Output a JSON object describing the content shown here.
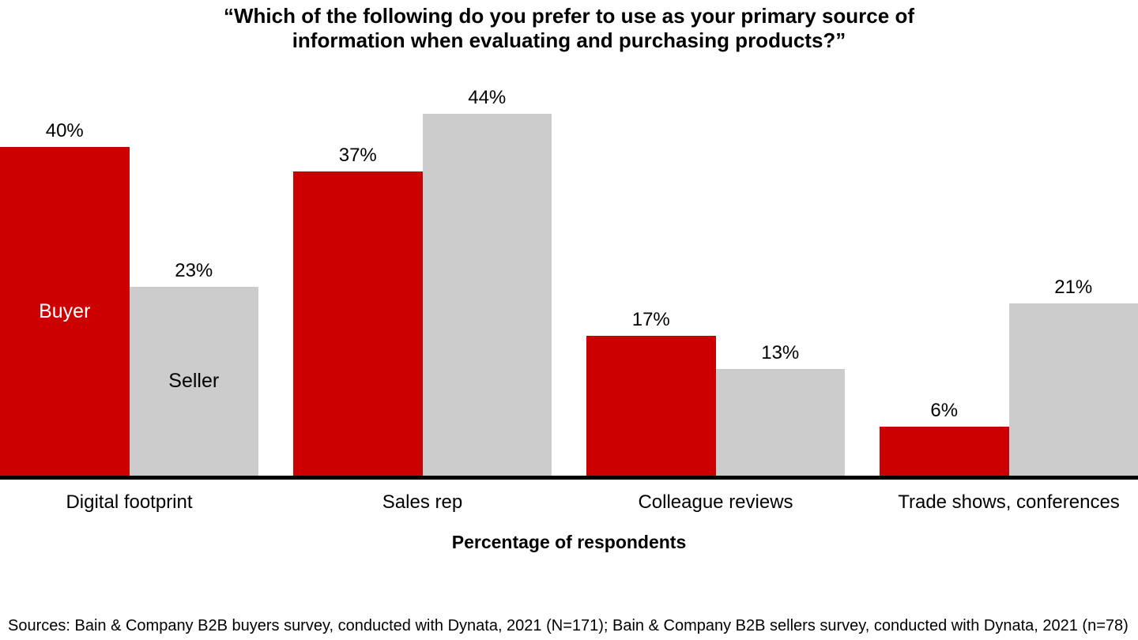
{
  "chart_data": {
    "type": "bar",
    "title": "“Which of the following do you prefer to use as your primary source of information when evaluating and purchasing products?”",
    "categories": [
      "Digital footprint",
      "Sales rep",
      "Colleague reviews",
      "Trade shows, conferences"
    ],
    "series": [
      {
        "name": "Buyer",
        "color": "#CC0000",
        "label_color": "#FFFFFF",
        "values": [
          40,
          37,
          17,
          6
        ]
      },
      {
        "name": "Seller",
        "color": "#CCCCCC",
        "label_color": "#000000",
        "values": [
          23,
          44,
          13,
          21
        ]
      }
    ],
    "value_suffix": "%",
    "xlabel": "Percentage of respondents",
    "ylabel": "",
    "ylim": [
      0,
      50
    ],
    "grid": false,
    "legend": "labels-inside-first-group-bars"
  },
  "source": "Sources: Bain & Company B2B buyers survey, conducted with Dynata, 2021 (N=171); Bain & Company B2B sellers survey, conducted with Dynata, 2021 (n=78)"
}
